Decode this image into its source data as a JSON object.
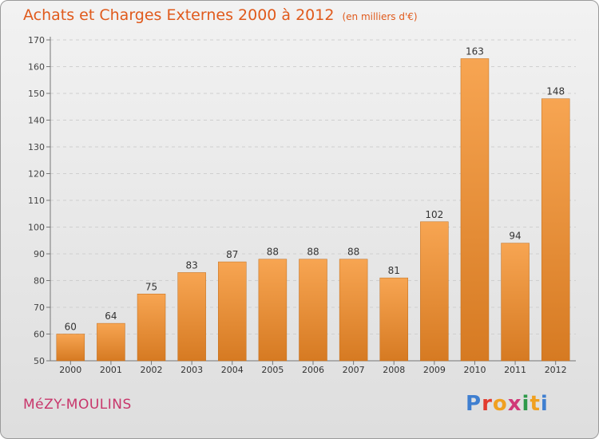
{
  "header": {
    "title": "Achats et Charges Externes 2000 à 2012",
    "subtitle": "(en milliers d'€)"
  },
  "footer": {
    "commune": "MéZY-MOULINS",
    "logo": {
      "letters": [
        "P",
        "r",
        "o",
        "x",
        "i",
        "t",
        "i"
      ],
      "colors": [
        "#3f7fd0",
        "#e23b2e",
        "#f0a020",
        "#d03878",
        "#2e9a4a",
        "#f0a020",
        "#3f7fd0"
      ]
    }
  },
  "colors": {
    "bar_light": "#f7a552",
    "bar_dark": "#d67a22",
    "axis": "#777777",
    "grid": "#cfcfcf"
  },
  "chart_data": {
    "type": "bar",
    "categories": [
      "2000",
      "2001",
      "2002",
      "2003",
      "2004",
      "2005",
      "2006",
      "2007",
      "2008",
      "2009",
      "2010",
      "2011",
      "2012"
    ],
    "values": [
      60,
      64,
      75,
      83,
      87,
      88,
      88,
      88,
      81,
      102,
      163,
      94,
      148
    ],
    "ylim": [
      50,
      170
    ],
    "yticks": [
      50,
      60,
      70,
      80,
      90,
      100,
      110,
      120,
      130,
      140,
      150,
      160,
      170
    ],
    "grid": true,
    "xlabel": "",
    "ylabel": ""
  }
}
